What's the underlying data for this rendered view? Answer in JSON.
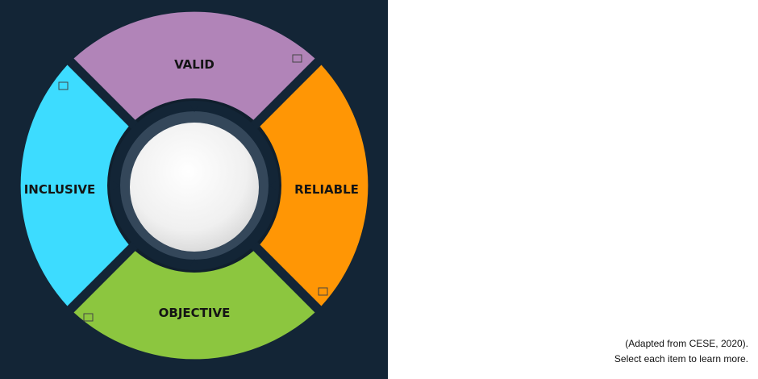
{
  "diagram": {
    "segments": [
      {
        "id": "valid",
        "label": "VALID",
        "color": "#b184b8"
      },
      {
        "id": "reliable",
        "label": "RELIABLE",
        "color": "#ff9605"
      },
      {
        "id": "objective",
        "label": "OBJECTIVE",
        "color": "#8cc63f"
      },
      {
        "id": "inclusive",
        "label": "INCLUSIVE",
        "color": "#3ddcff"
      }
    ],
    "background_color": "#132536"
  },
  "captions": {
    "source": "(Adapted from CESE, 2020).",
    "instruction": "Select each item to learn more."
  }
}
